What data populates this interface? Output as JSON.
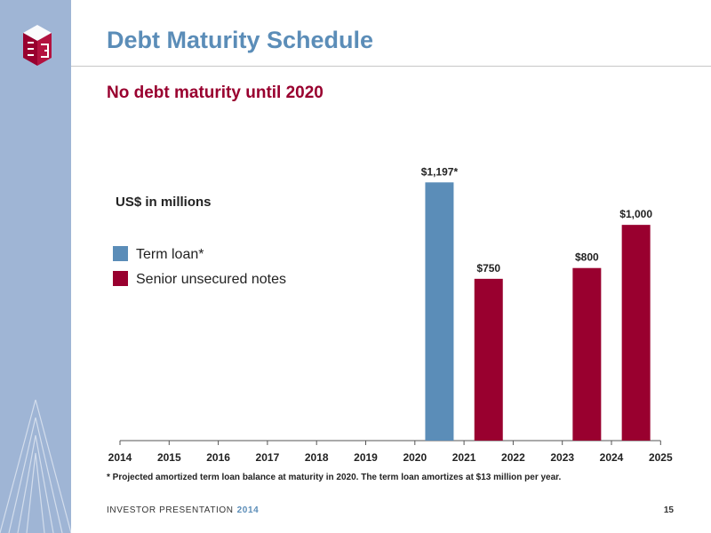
{
  "slide": {
    "title": "Debt Maturity Schedule",
    "subtitle": "No debt maturity until 2020",
    "footnote": "* Projected amortized term loan balance at maturity in 2020. The term loan amortizes at $13 million per year.",
    "footer_text": "INVESTOR PRESENTATION",
    "footer_year": "2014",
    "page_number": "15",
    "logo_icon": "company-logo-icon"
  },
  "colors": {
    "title": "#5b8db8",
    "subtitle": "#99002f",
    "sidebar": "#9fb5d5",
    "term_loan": "#5b8db8",
    "senior_notes": "#99002f"
  },
  "chart_data": {
    "type": "bar",
    "units_label": "US$ in millions",
    "categories": [
      "2014",
      "2015",
      "2016",
      "2017",
      "2018",
      "2019",
      "2020",
      "2021",
      "2022",
      "2023",
      "2024",
      "2025"
    ],
    "series": [
      {
        "name": "Term loan*",
        "color": "#5b8db8",
        "values": [
          0,
          0,
          0,
          0,
          0,
          0,
          1197,
          0,
          0,
          0,
          0,
          0
        ],
        "labels": [
          "",
          "",
          "",
          "",
          "",
          "",
          "$1,197*",
          "",
          "",
          "",
          "",
          ""
        ]
      },
      {
        "name": "Senior unsecured notes",
        "color": "#99002f",
        "values": [
          0,
          0,
          0,
          0,
          0,
          0,
          0,
          750,
          0,
          800,
          1000,
          0
        ],
        "labels": [
          "",
          "",
          "",
          "",
          "",
          "",
          "",
          "$750",
          "",
          "$800",
          "$1,000",
          ""
        ]
      }
    ],
    "ylim": [
      0,
      1400
    ],
    "grid": false,
    "legend": "top-left"
  }
}
